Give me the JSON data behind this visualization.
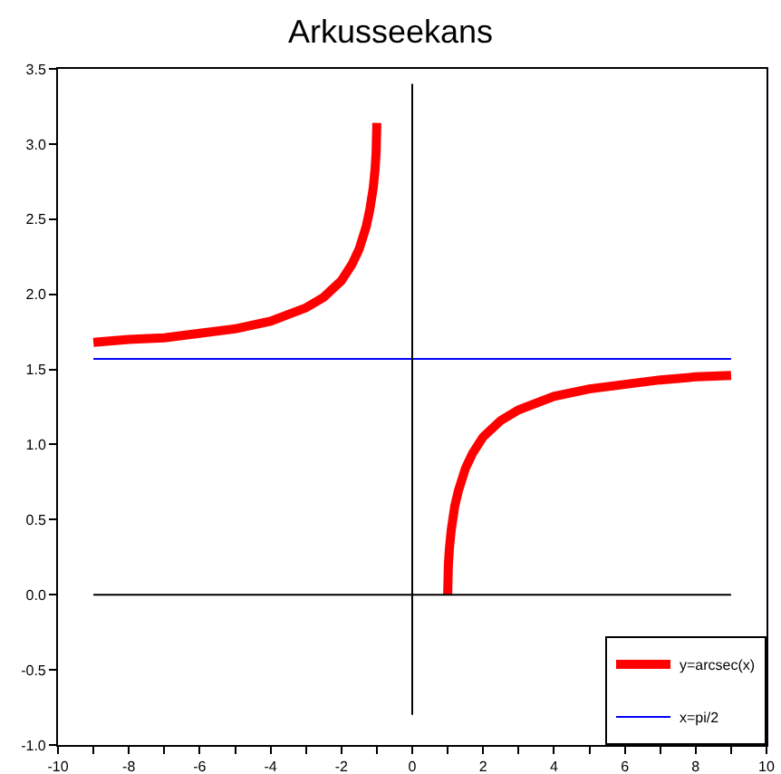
{
  "chart_data": {
    "type": "line",
    "title": "Arkusseekans",
    "series": [
      {
        "name": "y=arcsec(x)",
        "color": "#ff0000",
        "x": [
          -9,
          -8,
          -7,
          -6,
          -5,
          -4,
          -3,
          -2.5,
          -2,
          -1.7,
          -1.5,
          -1.3,
          -1.2,
          -1.1,
          -1.05,
          -1.02,
          -1,
          0,
          1,
          1.02,
          1.05,
          1.1,
          1.2,
          1.3,
          1.5,
          1.7,
          2,
          2.5,
          3,
          4,
          5,
          6,
          7,
          8,
          9
        ],
        "values": [
          1.68,
          1.7,
          1.71,
          1.74,
          1.77,
          1.82,
          1.91,
          1.98,
          2.09,
          2.2,
          2.3,
          2.45,
          2.56,
          2.71,
          2.83,
          2.94,
          3.14,
          null,
          0,
          0.2,
          0.31,
          0.43,
          0.59,
          0.69,
          0.84,
          0.94,
          1.05,
          1.16,
          1.23,
          1.32,
          1.37,
          1.4,
          1.43,
          1.45,
          1.46
        ]
      },
      {
        "name": "x=pi/2",
        "color": "#0000ff",
        "x": [
          -9,
          9
        ],
        "values": [
          1.57,
          1.57
        ]
      },
      {
        "color": "#000000",
        "x": [
          -9,
          9
        ],
        "values": [
          0,
          0
        ]
      },
      {
        "color": "#000000",
        "x": [
          0,
          0
        ],
        "values": [
          -0.8,
          3.4
        ]
      }
    ],
    "xlim": [
      -10,
      10
    ],
    "xticks": [
      -10,
      {
        "value": -9,
        "label": null
      },
      -8,
      {
        "value": -7,
        "label": null
      },
      -6,
      {
        "value": -5,
        "label": null
      },
      -4,
      {
        "value": -3,
        "label": null
      },
      -2,
      {
        "value": -1,
        "label": null
      },
      0,
      {
        "value": 1,
        "label": null
      },
      2,
      {
        "value": 3,
        "label": null
      },
      4,
      {
        "value": 5,
        "label": null
      },
      6,
      {
        "value": 7,
        "label": null
      },
      8,
      {
        "value": 9,
        "label": null
      },
      10
    ],
    "ylim": [
      -1.0,
      3.5
    ],
    "yticks": [
      {
        "value": -1,
        "label": "-1.0"
      },
      -0.5,
      {
        "value": 0,
        "label": "0.0"
      },
      0.5,
      {
        "value": 1,
        "label": "1.0"
      },
      1.5,
      {
        "value": 2,
        "label": "2.0"
      },
      2.5,
      {
        "value": 3,
        "label": "3.0"
      },
      3.5
    ],
    "grid": false,
    "legend": "bottom right"
  }
}
